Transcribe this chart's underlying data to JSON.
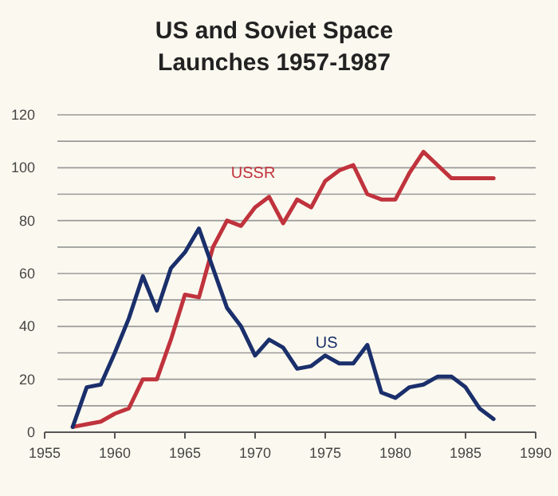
{
  "chart_data": {
    "type": "line",
    "title": "US and Soviet Space\nLaunches 1957-1987",
    "x": [
      1957,
      1958,
      1959,
      1960,
      1961,
      1962,
      1963,
      1964,
      1965,
      1966,
      1967,
      1968,
      1969,
      1970,
      1971,
      1972,
      1973,
      1974,
      1975,
      1976,
      1977,
      1978,
      1979,
      1980,
      1981,
      1982,
      1983,
      1984,
      1985,
      1986,
      1987
    ],
    "series": [
      {
        "name": "USSR",
        "color": "#c0333d",
        "values": [
          2,
          3,
          4,
          7,
          9,
          20,
          20,
          35,
          52,
          51,
          70,
          80,
          78,
          85,
          89,
          79,
          88,
          85,
          95,
          99,
          101,
          90,
          88,
          88,
          98,
          106,
          101,
          96,
          96,
          96,
          96
        ]
      },
      {
        "name": "US",
        "color": "#1a2f6b",
        "values": [
          2,
          17,
          18,
          30,
          43,
          59,
          46,
          62,
          68,
          77,
          62,
          47,
          40,
          29,
          35,
          32,
          24,
          25,
          29,
          26,
          26,
          33,
          15,
          13,
          17,
          18,
          21,
          21,
          17,
          9,
          5
        ]
      }
    ],
    "xlim": [
      1955,
      1990
    ],
    "xticks": [
      1955,
      1960,
      1965,
      1970,
      1975,
      1980,
      1985,
      1990
    ],
    "ylim": [
      0,
      120
    ],
    "yticks": [
      0,
      {
        "value": 10,
        "label": null
      },
      20,
      {
        "value": 30,
        "label": null
      },
      40,
      {
        "value": 50,
        "label": null
      },
      60,
      {
        "value": 70,
        "label": null
      },
      80,
      {
        "value": 90,
        "label": null
      },
      100,
      {
        "value": 110,
        "label": null
      },
      120
    ],
    "grid": "y",
    "legend": false,
    "marker": "none",
    "line_style": "solid"
  }
}
